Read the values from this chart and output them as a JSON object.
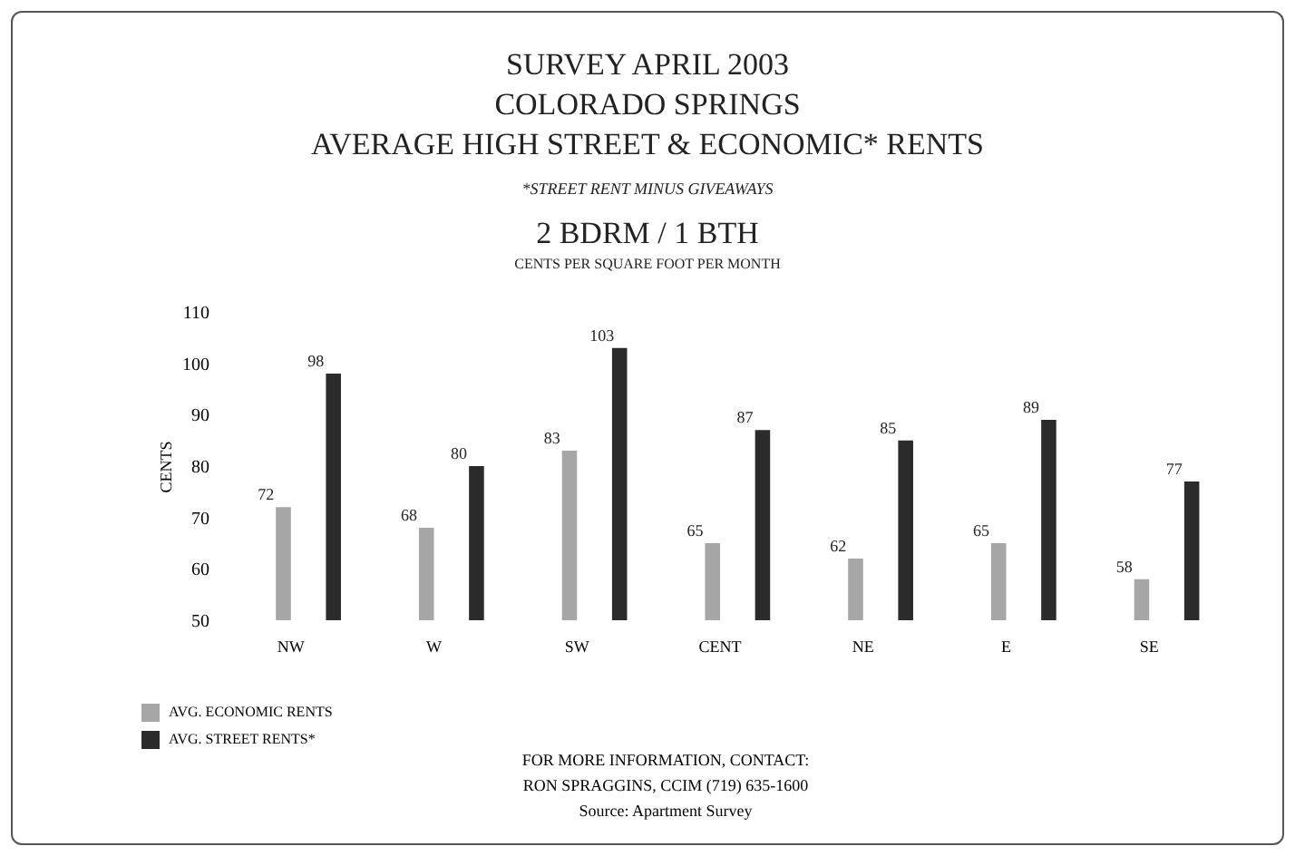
{
  "chart_data": {
    "type": "bar",
    "title": "SURVEY APRIL 2003\nCOLORADO SPRINGS\nAVERAGE HIGH STREET & ECONOMIC* RENTS",
    "subtitle": "*STREET RENT MINUS GIVEAWAYS",
    "ylabel": "CENTS",
    "annotations": [
      "2 BDRM / 1 BTH",
      "CENTS PER SQUARE FOOT PER MONTH",
      "FOR MORE INFORMATION, CONTACT:",
      "RON SPRAGGINS, CCIM (719) 635-1600",
      "Source: Apartment Survey"
    ],
    "categories": [
      "NW",
      "W",
      "SW",
      "CENT",
      "NE",
      "E",
      "SE"
    ],
    "series": [
      {
        "name": "AVG. ECONOMIC RENTS",
        "color": "#a6a6a6",
        "values": [
          72,
          68,
          83,
          65,
          62,
          65,
          58
        ]
      },
      {
        "name": "AVG. STREET RENTS*",
        "color": "#2b2b2b",
        "values": [
          98,
          80,
          103,
          87,
          85,
          89,
          77
        ]
      }
    ],
    "ylim": [
      50,
      110
    ],
    "yticks": [
      50,
      60,
      70,
      80,
      90,
      100,
      110
    ],
    "data_labels": true,
    "legend": "bottom left"
  }
}
